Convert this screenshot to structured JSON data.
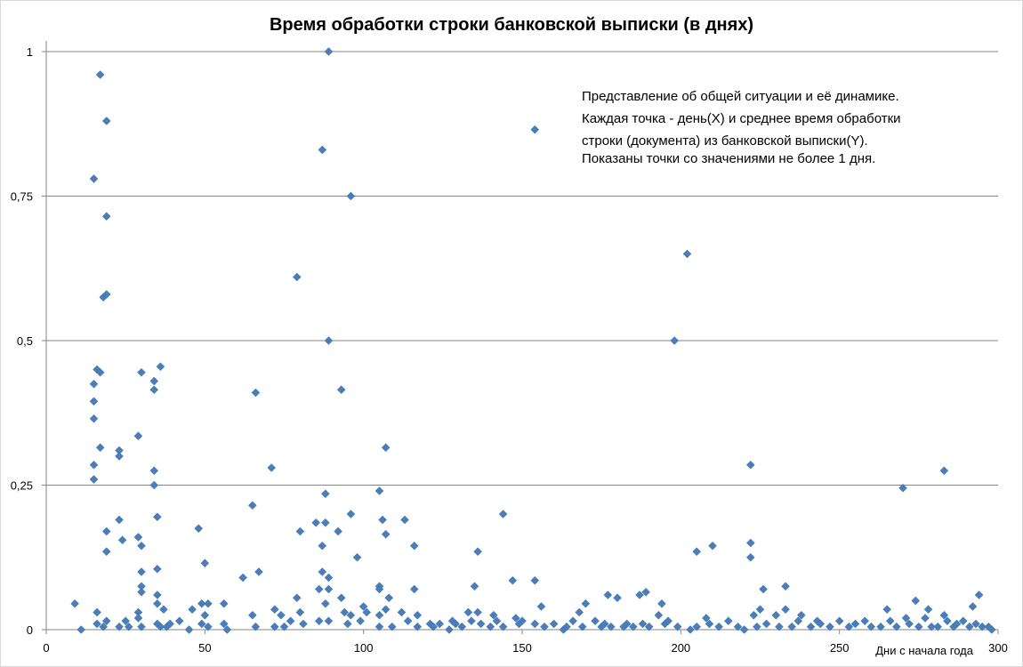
{
  "chart_data": {
    "type": "scatter",
    "title": "Время обработки строки банковской выписки (в днях)",
    "xlabel": "Дни с начала года",
    "ylabel": "",
    "xlim": [
      0,
      300
    ],
    "ylim": [
      0,
      1
    ],
    "x_ticks": [
      "0",
      "50",
      "100",
      "150",
      "200",
      "250",
      "300"
    ],
    "y_ticks": [
      "0",
      "0,25",
      "0,5",
      "0,75",
      "1"
    ],
    "grid": "horizontal",
    "marker": "diamond",
    "color": "#4a7ebb",
    "annotation": [
      "Представление об общей ситуации и её динамике.",
      "Каждая точка - день(X) и среднее время обработки",
      "строки (документа) из банковской выписки(Y).",
      "Показаны точки со значениями не более 1 дня."
    ],
    "points": [
      [
        9,
        0.045
      ],
      [
        11,
        0.0
      ],
      [
        15,
        0.78
      ],
      [
        15,
        0.425
      ],
      [
        15,
        0.395
      ],
      [
        15,
        0.365
      ],
      [
        15,
        0.285
      ],
      [
        15,
        0.26
      ],
      [
        16,
        0.45
      ],
      [
        16,
        0.03
      ],
      [
        16,
        0.01
      ],
      [
        17,
        0.96
      ],
      [
        17,
        0.445
      ],
      [
        17,
        0.315
      ],
      [
        18,
        0.575
      ],
      [
        18,
        0.005
      ],
      [
        19,
        0.88
      ],
      [
        19,
        0.715
      ],
      [
        19,
        0.58
      ],
      [
        19,
        0.17
      ],
      [
        19,
        0.135
      ],
      [
        19,
        0.015
      ],
      [
        23,
        0.31
      ],
      [
        23,
        0.3
      ],
      [
        23,
        0.19
      ],
      [
        23,
        0.005
      ],
      [
        24,
        0.155
      ],
      [
        25,
        0.015
      ],
      [
        26,
        0.005
      ],
      [
        29,
        0.335
      ],
      [
        29,
        0.16
      ],
      [
        29,
        0.03
      ],
      [
        29,
        0.02
      ],
      [
        30,
        0.445
      ],
      [
        30,
        0.145
      ],
      [
        30,
        0.1
      ],
      [
        30,
        0.075
      ],
      [
        30,
        0.065
      ],
      [
        30,
        0.005
      ],
      [
        34,
        0.43
      ],
      [
        34,
        0.415
      ],
      [
        34,
        0.275
      ],
      [
        34,
        0.25
      ],
      [
        35,
        0.195
      ],
      [
        35,
        0.105
      ],
      [
        35,
        0.06
      ],
      [
        35,
        0.045
      ],
      [
        35,
        0.01
      ],
      [
        36,
        0.455
      ],
      [
        36,
        0.005
      ],
      [
        37,
        0.035
      ],
      [
        38,
        0.005
      ],
      [
        39,
        0.01
      ],
      [
        42,
        0.015
      ],
      [
        45,
        0.0
      ],
      [
        46,
        0.035
      ],
      [
        48,
        0.175
      ],
      [
        49,
        0.045
      ],
      [
        49,
        0.01
      ],
      [
        50,
        0.115
      ],
      [
        50,
        0.025
      ],
      [
        51,
        0.045
      ],
      [
        51,
        0.005
      ],
      [
        56,
        0.045
      ],
      [
        56,
        0.01
      ],
      [
        57,
        0.0
      ],
      [
        62,
        0.09
      ],
      [
        65,
        0.215
      ],
      [
        65,
        0.025
      ],
      [
        66,
        0.41
      ],
      [
        66,
        0.005
      ],
      [
        67,
        0.1
      ],
      [
        71,
        0.28
      ],
      [
        72,
        0.035
      ],
      [
        72,
        0.005
      ],
      [
        74,
        0.025
      ],
      [
        75,
        0.005
      ],
      [
        77,
        0.015
      ],
      [
        79,
        0.61
      ],
      [
        79,
        0.055
      ],
      [
        80,
        0.17
      ],
      [
        80,
        0.03
      ],
      [
        81,
        0.01
      ],
      [
        85,
        0.185
      ],
      [
        86,
        0.07
      ],
      [
        86,
        0.015
      ],
      [
        87,
        0.83
      ],
      [
        87,
        0.145
      ],
      [
        87,
        0.1
      ],
      [
        88,
        0.235
      ],
      [
        88,
        0.185
      ],
      [
        88,
        0.045
      ],
      [
        89,
        1.0
      ],
      [
        89,
        0.5
      ],
      [
        89,
        0.09
      ],
      [
        89,
        0.07
      ],
      [
        89,
        0.015
      ],
      [
        92,
        0.17
      ],
      [
        93,
        0.415
      ],
      [
        93,
        0.055
      ],
      [
        94,
        0.03
      ],
      [
        95,
        0.01
      ],
      [
        96,
        0.75
      ],
      [
        96,
        0.2
      ],
      [
        96,
        0.025
      ],
      [
        98,
        0.125
      ],
      [
        99,
        0.015
      ],
      [
        100,
        0.04
      ],
      [
        101,
        0.03
      ],
      [
        105,
        0.24
      ],
      [
        105,
        0.075
      ],
      [
        105,
        0.07
      ],
      [
        105,
        0.025
      ],
      [
        105,
        0.005
      ],
      [
        106,
        0.19
      ],
      [
        107,
        0.315
      ],
      [
        107,
        0.165
      ],
      [
        107,
        0.035
      ],
      [
        108,
        0.055
      ],
      [
        109,
        0.005
      ],
      [
        112,
        0.03
      ],
      [
        113,
        0.19
      ],
      [
        114,
        0.015
      ],
      [
        116,
        0.145
      ],
      [
        116,
        0.07
      ],
      [
        117,
        0.025
      ],
      [
        117,
        0.005
      ],
      [
        121,
        0.01
      ],
      [
        122,
        0.005
      ],
      [
        124,
        0.01
      ],
      [
        127,
        0.0
      ],
      [
        128,
        0.015
      ],
      [
        129,
        0.01
      ],
      [
        131,
        0.005
      ],
      [
        133,
        0.03
      ],
      [
        134,
        0.015
      ],
      [
        135,
        0.075
      ],
      [
        136,
        0.135
      ],
      [
        136,
        0.03
      ],
      [
        137,
        0.01
      ],
      [
        140,
        0.005
      ],
      [
        141,
        0.025
      ],
      [
        142,
        0.015
      ],
      [
        144,
        0.2
      ],
      [
        144,
        0.005
      ],
      [
        147,
        0.085
      ],
      [
        148,
        0.02
      ],
      [
        149,
        0.01
      ],
      [
        150,
        0.015
      ],
      [
        154,
        0.865
      ],
      [
        154,
        0.085
      ],
      [
        154,
        0.01
      ],
      [
        156,
        0.04
      ],
      [
        157,
        0.005
      ],
      [
        160,
        0.01
      ],
      [
        163,
        0.0
      ],
      [
        164,
        0.005
      ],
      [
        166,
        0.015
      ],
      [
        168,
        0.03
      ],
      [
        169,
        0.005
      ],
      [
        170,
        0.045
      ],
      [
        173,
        0.015
      ],
      [
        175,
        0.005
      ],
      [
        176,
        0.01
      ],
      [
        177,
        0.06
      ],
      [
        178,
        0.005
      ],
      [
        180,
        0.055
      ],
      [
        182,
        0.005
      ],
      [
        183,
        0.01
      ],
      [
        185,
        0.005
      ],
      [
        187,
        0.06
      ],
      [
        188,
        0.01
      ],
      [
        189,
        0.065
      ],
      [
        190,
        0.005
      ],
      [
        193,
        0.025
      ],
      [
        194,
        0.045
      ],
      [
        195,
        0.01
      ],
      [
        196,
        0.015
      ],
      [
        198,
        0.5
      ],
      [
        199,
        0.005
      ],
      [
        202,
        0.65
      ],
      [
        203,
        0.0
      ],
      [
        205,
        0.135
      ],
      [
        205,
        0.005
      ],
      [
        208,
        0.02
      ],
      [
        209,
        0.01
      ],
      [
        210,
        0.145
      ],
      [
        212,
        0.005
      ],
      [
        215,
        0.015
      ],
      [
        218,
        0.005
      ],
      [
        220,
        0.0
      ],
      [
        222,
        0.285
      ],
      [
        222,
        0.15
      ],
      [
        222,
        0.125
      ],
      [
        223,
        0.025
      ],
      [
        224,
        0.005
      ],
      [
        225,
        0.035
      ],
      [
        226,
        0.07
      ],
      [
        227,
        0.01
      ],
      [
        230,
        0.025
      ],
      [
        231,
        0.005
      ],
      [
        233,
        0.075
      ],
      [
        233,
        0.035
      ],
      [
        235,
        0.005
      ],
      [
        237,
        0.015
      ],
      [
        238,
        0.025
      ],
      [
        241,
        0.005
      ],
      [
        243,
        0.015
      ],
      [
        244,
        0.01
      ],
      [
        247,
        0.005
      ],
      [
        250,
        0.015
      ],
      [
        253,
        0.005
      ],
      [
        255,
        0.01
      ],
      [
        258,
        0.015
      ],
      [
        260,
        0.005
      ],
      [
        263,
        0.005
      ],
      [
        265,
        0.035
      ],
      [
        266,
        0.015
      ],
      [
        268,
        0.005
      ],
      [
        270,
        0.245
      ],
      [
        271,
        0.02
      ],
      [
        272,
        0.01
      ],
      [
        274,
        0.05
      ],
      [
        275,
        0.005
      ],
      [
        277,
        0.02
      ],
      [
        278,
        0.035
      ],
      [
        279,
        0.005
      ],
      [
        281,
        0.005
      ],
      [
        283,
        0.275
      ],
      [
        283,
        0.025
      ],
      [
        284,
        0.015
      ],
      [
        286,
        0.005
      ],
      [
        287,
        0.01
      ],
      [
        289,
        0.015
      ],
      [
        291,
        0.005
      ],
      [
        292,
        0.04
      ],
      [
        293,
        0.01
      ],
      [
        294,
        0.06
      ],
      [
        295,
        0.005
      ],
      [
        297,
        0.005
      ],
      [
        298,
        0.0
      ]
    ]
  }
}
